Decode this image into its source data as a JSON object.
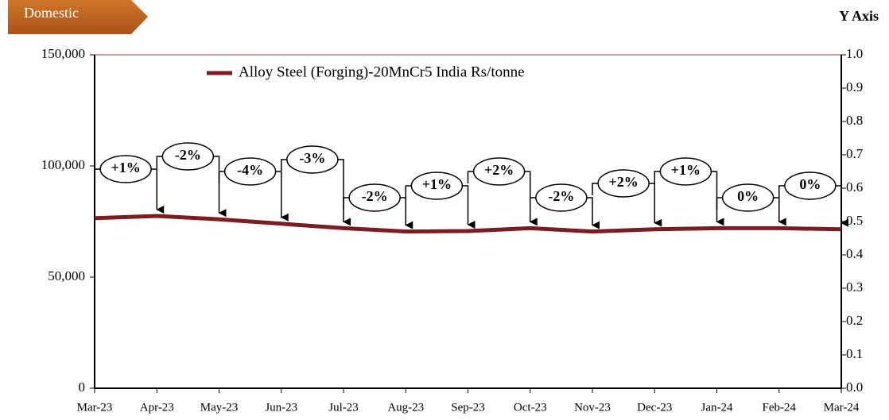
{
  "chart_data": {
    "type": "line",
    "tag": "Domestic",
    "y2_title": "Y Axis",
    "categories": [
      "Mar-23",
      "Apr-23",
      "May-23",
      "Jun-23",
      "Jul-23",
      "Aug-23",
      "Sep-23",
      "Oct-23",
      "Nov-23",
      "Dec-23",
      "Jan-24",
      "Feb-24",
      "Mar-24"
    ],
    "series": [
      {
        "name": "Alloy Steel (Forging)-20MnCr5 India Rs/tonne",
        "color": "#7b1c22",
        "values": [
          76500,
          77500,
          76000,
          74000,
          72000,
          70500,
          70700,
          72000,
          70500,
          71500,
          72000,
          72000,
          71500
        ]
      }
    ],
    "annotations": [
      "+1%",
      "-2%",
      "-4%",
      "-3%",
      "-2%",
      "+1%",
      "+2%",
      "-2%",
      "+2%",
      "+1%",
      "0%",
      "0%"
    ],
    "ylim": [
      0,
      150000
    ],
    "yticks": [
      {
        "value": 0,
        "label": "0"
      },
      {
        "value": 50000,
        "label": "50,000"
      },
      {
        "value": 100000,
        "label": "100,000"
      },
      {
        "value": 150000,
        "label": "150,000"
      }
    ],
    "y2lim": [
      0,
      1
    ],
    "y2ticks": [
      {
        "value": 0,
        "label": "0.0"
      },
      0.1,
      0.2,
      0.3,
      0.4,
      0.5,
      0.6,
      0.7,
      0.8,
      0.9,
      {
        "value": 1,
        "label": "1.0"
      }
    ]
  }
}
